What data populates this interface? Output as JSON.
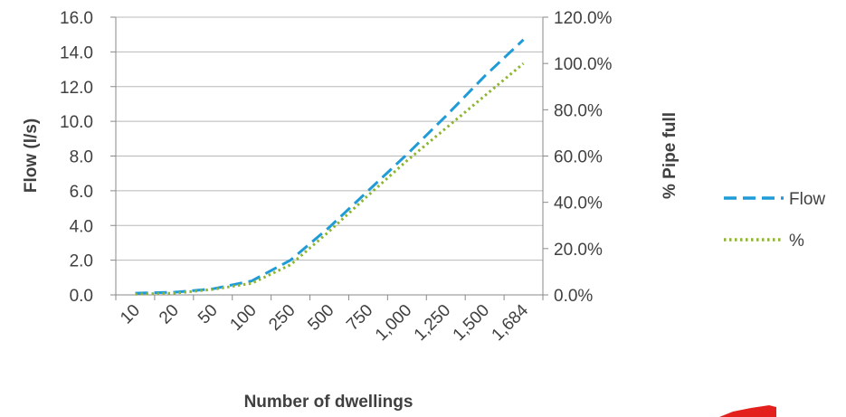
{
  "chart_data": {
    "type": "line",
    "title": "",
    "xlabel": "Number of dwellings",
    "ylabel": "Flow (l/s)",
    "y2label": "% Pipe full",
    "categories": [
      "10",
      "20",
      "50",
      "100",
      "250",
      "500",
      "750",
      "1,000",
      "1,250",
      "1,500",
      "1,684"
    ],
    "ylim": [
      0,
      16
    ],
    "y2lim": [
      0,
      1.2
    ],
    "yticks": [
      "0.0",
      "2.0",
      "4.0",
      "6.0",
      "8.0",
      "10.0",
      "12.0",
      "14.0",
      "16.0"
    ],
    "y2ticks": [
      "0.0%",
      "20.0%",
      "40.0%",
      "60.0%",
      "80.0%",
      "100.0%",
      "120.0%"
    ],
    "grid": true,
    "legend_position": "right",
    "series": [
      {
        "name": "Flow",
        "axis": "left",
        "color": "#1f9bd7",
        "dash": "dashed",
        "values": [
          0.1,
          0.15,
          0.35,
          0.8,
          2.0,
          3.9,
          6.0,
          8.1,
          10.3,
          12.6,
          14.7
        ]
      },
      {
        "name": "%",
        "axis": "right",
        "color": "#8db52f",
        "dash": "dotted",
        "values": [
          0.003,
          0.007,
          0.024,
          0.05,
          0.13,
          0.275,
          0.43,
          0.58,
          0.72,
          0.86,
          1.0
        ]
      }
    ]
  }
}
